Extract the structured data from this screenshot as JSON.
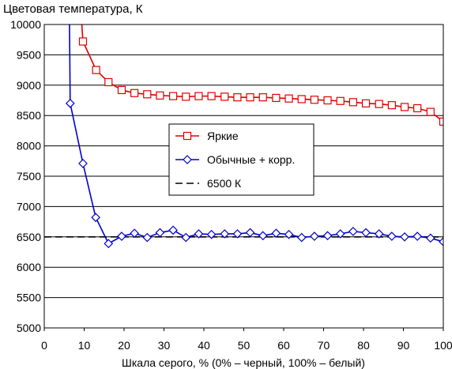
{
  "chart_data": {
    "type": "line",
    "title": "Цветовая температура, К",
    "xlabel": "Шкала серого, % (0% – черный, 100% – белый)",
    "ylabel": "",
    "xlim": [
      0,
      100
    ],
    "ylim": [
      5000,
      10000
    ],
    "x_ticks": [
      0,
      10,
      20,
      30,
      40,
      50,
      60,
      70,
      80,
      90,
      100
    ],
    "y_ticks": [
      5000,
      5500,
      6000,
      6500,
      7000,
      7500,
      8000,
      8500,
      9000,
      9500,
      10000
    ],
    "grid": "horizontal",
    "legend_position": "center-right",
    "series": [
      {
        "name": "Яркие",
        "color": "#e00000",
        "marker": "square",
        "points": [
          [
            9.2,
            10200
          ],
          [
            9.7,
            9720
          ],
          [
            13.0,
            9250
          ],
          [
            16.1,
            9050
          ],
          [
            19.4,
            8920
          ],
          [
            22.6,
            8870
          ],
          [
            25.8,
            8850
          ],
          [
            29.0,
            8830
          ],
          [
            32.3,
            8820
          ],
          [
            35.5,
            8810
          ],
          [
            38.7,
            8820
          ],
          [
            41.9,
            8820
          ],
          [
            45.2,
            8810
          ],
          [
            48.4,
            8800
          ],
          [
            51.6,
            8800
          ],
          [
            54.8,
            8800
          ],
          [
            58.1,
            8790
          ],
          [
            61.3,
            8780
          ],
          [
            64.5,
            8770
          ],
          [
            67.7,
            8760
          ],
          [
            71.0,
            8750
          ],
          [
            74.2,
            8740
          ],
          [
            77.4,
            8720
          ],
          [
            80.6,
            8700
          ],
          [
            83.9,
            8690
          ],
          [
            87.1,
            8670
          ],
          [
            90.3,
            8640
          ],
          [
            93.5,
            8620
          ],
          [
            96.8,
            8560
          ],
          [
            100,
            8400
          ]
        ]
      },
      {
        "name": "Обычные + корр.",
        "color": "#0000cc",
        "marker": "diamond",
        "points": [
          [
            6.3,
            10200
          ],
          [
            6.5,
            8700
          ],
          [
            9.7,
            7710
          ],
          [
            12.9,
            6820
          ],
          [
            16.1,
            6390
          ],
          [
            19.4,
            6510
          ],
          [
            22.6,
            6560
          ],
          [
            25.8,
            6490
          ],
          [
            29.0,
            6570
          ],
          [
            32.3,
            6610
          ],
          [
            35.5,
            6490
          ],
          [
            38.7,
            6550
          ],
          [
            41.9,
            6540
          ],
          [
            45.2,
            6550
          ],
          [
            48.4,
            6550
          ],
          [
            51.6,
            6570
          ],
          [
            54.8,
            6520
          ],
          [
            58.1,
            6560
          ],
          [
            61.3,
            6540
          ],
          [
            64.5,
            6490
          ],
          [
            67.7,
            6510
          ],
          [
            71.0,
            6520
          ],
          [
            74.2,
            6550
          ],
          [
            77.4,
            6590
          ],
          [
            80.6,
            6570
          ],
          [
            83.9,
            6550
          ],
          [
            87.1,
            6510
          ],
          [
            90.3,
            6500
          ],
          [
            93.5,
            6510
          ],
          [
            96.8,
            6480
          ],
          [
            100,
            6420
          ]
        ]
      },
      {
        "name": "6500 К",
        "color": "#000000",
        "marker": "none",
        "dashed": true,
        "points": [
          [
            0,
            6500
          ],
          [
            100,
            6500
          ]
        ]
      }
    ]
  }
}
